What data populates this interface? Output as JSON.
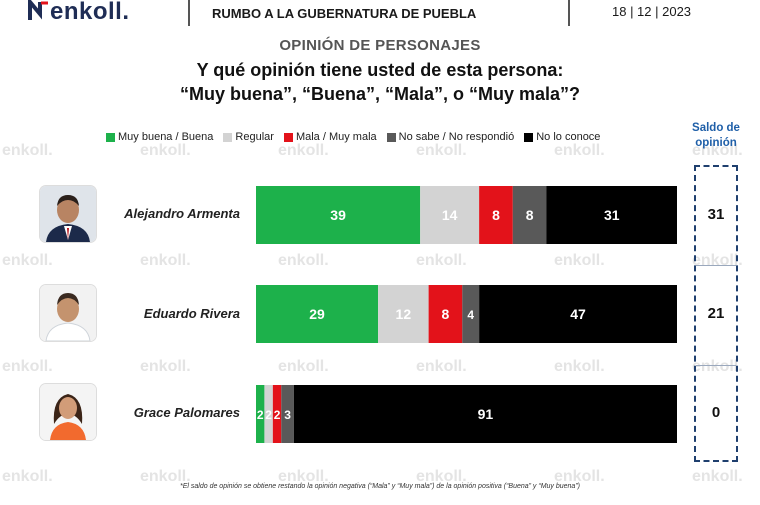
{
  "header": {
    "logo": "enkoll.",
    "title": "RUMBO A LA GUBERNATURA DE PUEBLA",
    "date": "18 | 12 | 2023"
  },
  "watermark_text": "enkoll.",
  "section_title": "OPINIÓN DE PERSONAJES",
  "question_line1": "Y qué opinión tiene usted de esta persona:",
  "question_line2": "“Muy buena”, “Buena”, “Mala”, o “Muy mala”?",
  "saldo_header": [
    "Saldo de",
    "opinión"
  ],
  "footnote": "*El saldo de opinión se obtiene restando la opinión negativa (“Mala” y “Muy mala”) de la opinión positiva (“Buena” y “Muy buena”)",
  "colors": {
    "positive": "#1db14b",
    "regular": "#d3d3d3",
    "negative": "#e3121a",
    "no_sabe": "#595959",
    "no_conoce": "#000000"
  },
  "chart_data": {
    "type": "bar",
    "orientation": "horizontal",
    "stacked": true,
    "normalized_to": 100,
    "categories": [
      "Alejandro Armenta",
      "Eduardo Rivera",
      "Grace Palomares"
    ],
    "series": [
      {
        "name": "Muy buena / Buena",
        "color": "#1db14b",
        "values": [
          39,
          29,
          2
        ]
      },
      {
        "name": "Regular",
        "color": "#d3d3d3",
        "values": [
          14,
          12,
          2
        ]
      },
      {
        "name": "Mala / Muy mala",
        "color": "#e3121a",
        "values": [
          8,
          8,
          2
        ]
      },
      {
        "name": "No sabe / No respondió",
        "color": "#595959",
        "values": [
          8,
          4,
          3
        ]
      },
      {
        "name": "No lo conoce",
        "color": "#000000",
        "values": [
          31,
          47,
          91
        ]
      }
    ],
    "saldo_de_opinion": [
      31,
      21,
      0
    ],
    "legend_position": "top",
    "grid": false
  }
}
